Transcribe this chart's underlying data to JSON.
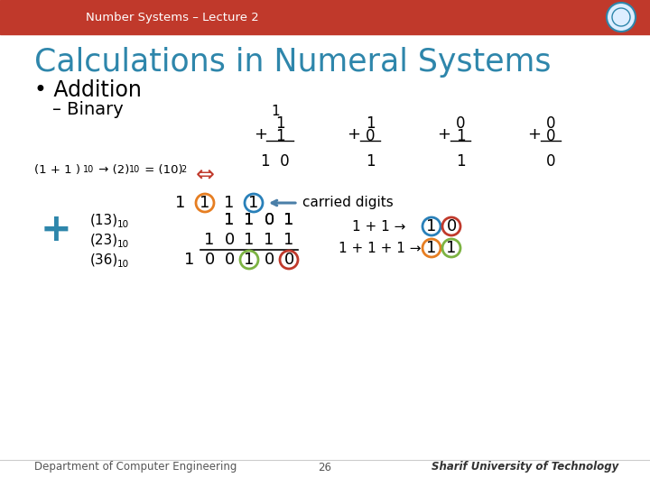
{
  "title": "Calculations in Numeral Systems",
  "header": "Number Systems – Lecture 2",
  "header_bg": "#c0392b",
  "header_text_color": "#ffffff",
  "slide_bg": "#ffffff",
  "title_color": "#2e86ab",
  "footer_left": "Department of Computer Engineering",
  "footer_num": "26",
  "footer_right": "Sharif University of Technology",
  "circle_orange": "#e67e22",
  "circle_blue": "#2980b9",
  "circle_green": "#7cb342",
  "circle_red": "#c0392b",
  "arrow_color": "#4a7fa8"
}
